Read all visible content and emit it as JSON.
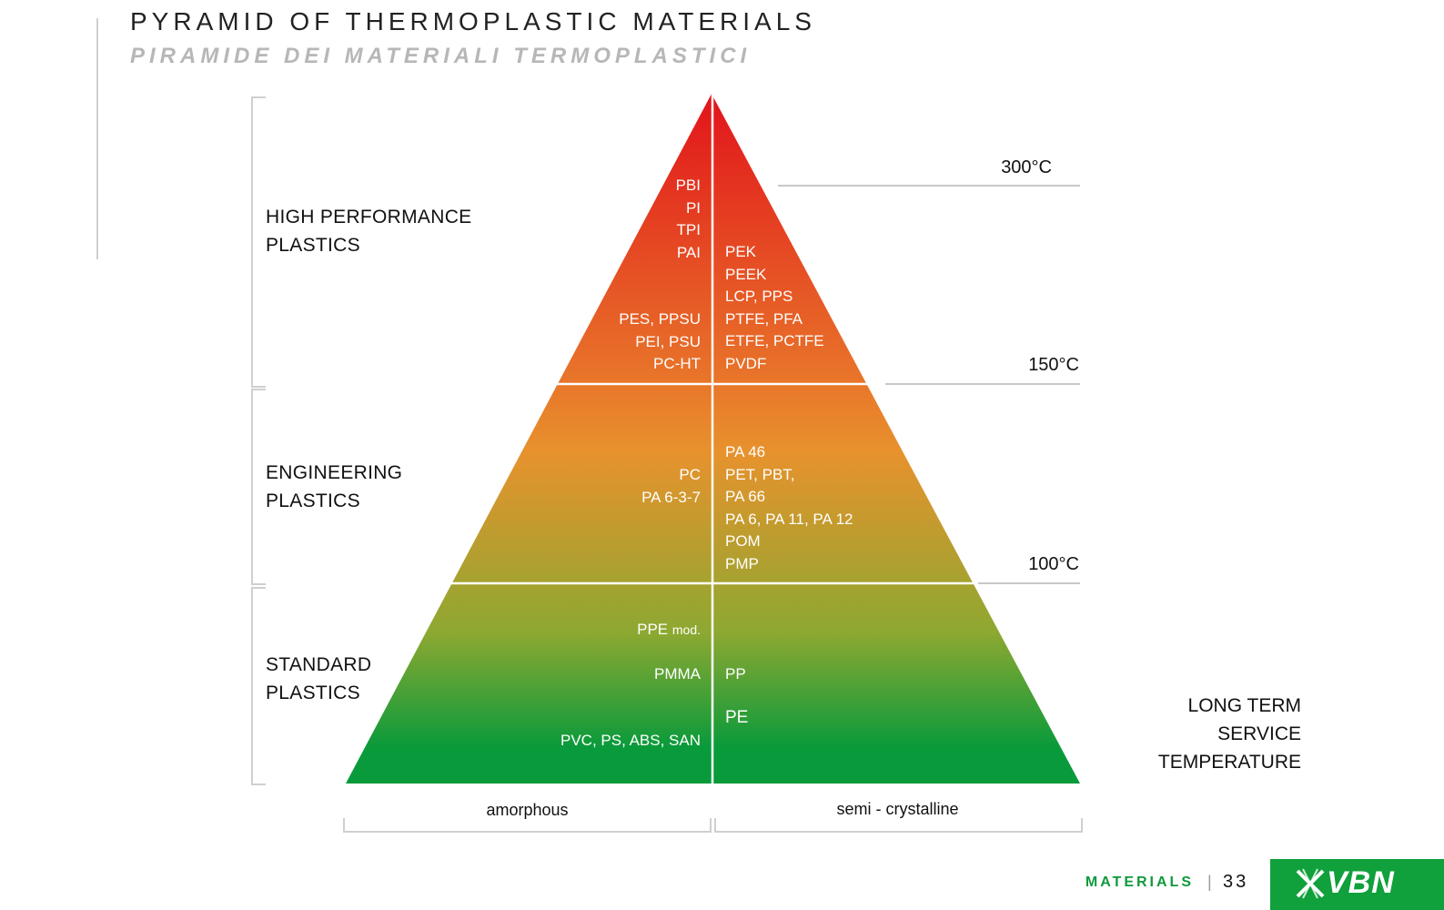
{
  "header": {
    "title": "PYRAMID OF THERMOPLASTIC MATERIALS",
    "subtitle": "PIRAMIDE DEI MATERIALI TERMOPLASTICI"
  },
  "categories": {
    "high": [
      "HIGH PERFORMANCE",
      "PLASTICS"
    ],
    "engineering": [
      "ENGINEERING",
      "PLASTICS"
    ],
    "standard": [
      "STANDARD",
      "PLASTICS"
    ]
  },
  "pyramid": {
    "colors": {
      "top": "#e2141b",
      "upper_mid": "#e8762a",
      "mid": "#e7922d",
      "lower_mid": "#8ea831",
      "bottom": "#089a3b"
    },
    "high_amorphous_top": [
      "PBI",
      "PI",
      "TPI",
      "PAI"
    ],
    "high_amorphous_bottom": [
      "PES, PPSU",
      "PEI, PSU",
      "PC-HT"
    ],
    "high_semicrystalline": [
      "PEK",
      "PEEK",
      "LCP, PPS",
      "PTFE, PFA",
      "ETFE, PCTFE",
      "PVDF"
    ],
    "eng_amorphous": [
      "PC",
      "PA 6-3-7"
    ],
    "eng_semicrystalline": [
      "PA 46",
      "PET, PBT,",
      "PA 66",
      "PA 6, PA 11, PA 12",
      "POM",
      "PMP"
    ],
    "std_amorphous": {
      "ppe": "PPE",
      "ppe_suffix": "mod.",
      "pmma": "PMMA",
      "pvc": "PVC, PS, ABS, SAN"
    },
    "std_semicrystalline": {
      "pp": "PP",
      "pe": "PE"
    }
  },
  "temperatures": {
    "t300": "300°C",
    "t150": "150°C",
    "t100": "100°C"
  },
  "long_term": [
    "LONG TERM",
    "SERVICE",
    "TEMPERATURE"
  ],
  "base": {
    "amorphous": "amorphous",
    "semicrystalline": "semi - crystalline"
  },
  "footer": {
    "section": "MATERIALS",
    "separator": "|",
    "page": "33",
    "logo": "VBN"
  }
}
